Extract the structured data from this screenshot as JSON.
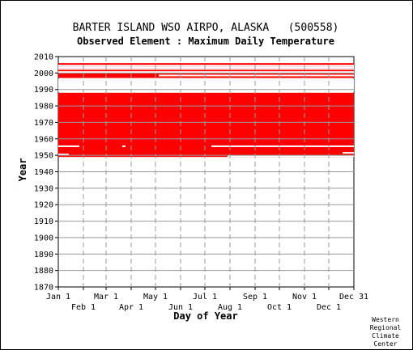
{
  "chart_data": {
    "type": "heatmap",
    "title": "BARTER ISLAND WSO AIRPO, ALASKA   (500558)",
    "subtitle": "Observed Element : Maximum Daily Temperature",
    "xlabel": "Day of Year",
    "ylabel": "Year",
    "x_range_day_of_year": [
      1,
      366
    ],
    "ylim": [
      1870,
      2010
    ],
    "y_ticks": [
      1870,
      1880,
      1890,
      1900,
      1910,
      1920,
      1930,
      1940,
      1950,
      1960,
      1970,
      1980,
      1990,
      2000,
      2010
    ],
    "x_ticks_upper": [
      {
        "label": "Jan 1",
        "day": 1
      },
      {
        "label": "Mar 1",
        "day": 60
      },
      {
        "label": "May 1",
        "day": 121
      },
      {
        "label": "Jul 1",
        "day": 182
      },
      {
        "label": "Sep 1",
        "day": 244
      },
      {
        "label": "Nov 1",
        "day": 305
      },
      {
        "label": "Dec 31",
        "day": 366
      }
    ],
    "x_ticks_lower": [
      {
        "label": "Feb 1",
        "day": 32
      },
      {
        "label": "Apr 1",
        "day": 91
      },
      {
        "label": "Jun 1",
        "day": 152
      },
      {
        "label": "Aug 1",
        "day": 213
      },
      {
        "label": "Oct 1",
        "day": 274
      },
      {
        "label": "Dec 1",
        "day": 335
      }
    ],
    "grid": true,
    "data_color": "#ff0000",
    "coverage_blocks": [
      {
        "start_year": 1949,
        "end_year": 1988,
        "start_day": 1,
        "end_day": 366
      },
      {
        "start_year": 1997,
        "end_year": 2006,
        "start_day": 1,
        "end_day": 366
      }
    ],
    "gaps": [
      {
        "year": 1955.5,
        "start_day": 1,
        "end_day": 27
      },
      {
        "year": 1955.5,
        "start_day": 80,
        "end_day": 84
      },
      {
        "year": 1955.5,
        "start_day": 190,
        "end_day": 366
      },
      {
        "year": 1950.5,
        "start_day": 1,
        "end_day": 14
      },
      {
        "year": 1949.5,
        "start_day": 210,
        "end_day": 366
      },
      {
        "year": 1951.5,
        "start_day": 352,
        "end_day": 366
      },
      {
        "year": 1989,
        "start_day": 1,
        "end_day": 366
      },
      {
        "year": 1990,
        "start_day": 1,
        "end_day": 366
      },
      {
        "year": 1991,
        "start_day": 1,
        "end_day": 366
      },
      {
        "year": 1992,
        "start_day": 1,
        "end_day": 366
      },
      {
        "year": 1993,
        "start_day": 1,
        "end_day": 366
      },
      {
        "year": 1994,
        "start_day": 1,
        "end_day": 366
      },
      {
        "year": 1995,
        "start_day": 1,
        "end_day": 366
      },
      {
        "year": 1996,
        "start_day": 1,
        "end_day": 366
      },
      {
        "year": 2000.6,
        "start_day": 1,
        "end_day": 366
      },
      {
        "year": 2002.5,
        "start_day": 1,
        "end_day": 366
      },
      {
        "year": 1998.5,
        "start_day": 125,
        "end_day": 366
      },
      {
        "year": 2003.5,
        "start_day": 0,
        "end_day": 366
      },
      {
        "year": 2004.5,
        "start_day": 0,
        "end_day": 366
      }
    ]
  },
  "footer": {
    "credit_lines": [
      "Western",
      "Regional",
      "Climate",
      "Center"
    ]
  }
}
